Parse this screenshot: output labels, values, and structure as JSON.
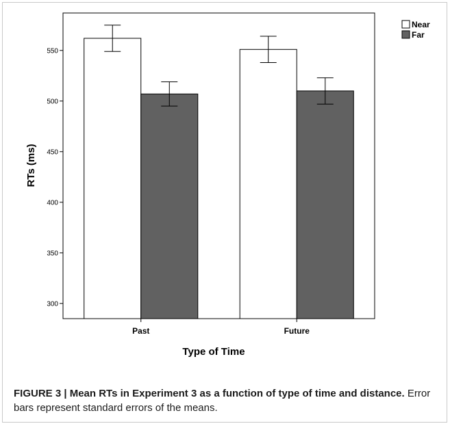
{
  "chart_data": {
    "type": "bar",
    "categories": [
      "Past",
      "Future"
    ],
    "series": [
      {
        "name": "Near",
        "values": [
          562,
          551
        ],
        "errors": [
          13,
          13
        ],
        "color": "#ffffff"
      },
      {
        "name": "Far",
        "values": [
          507,
          510
        ],
        "errors": [
          12,
          13
        ],
        "color": "#616161"
      }
    ],
    "xlabel": "Type of Time",
    "ylabel": "RTs (ms)",
    "ylim": [
      285,
      587
    ],
    "yticks": [
      300,
      350,
      400,
      450,
      500,
      550
    ],
    "error_bars": true,
    "legend": "top-right",
    "grid": false
  },
  "caption": {
    "lead": "FIGURE 3 | Mean RTs in Experiment 3 as a function of type of time and distance.",
    "text": " Error bars represent standard errors of the means."
  }
}
